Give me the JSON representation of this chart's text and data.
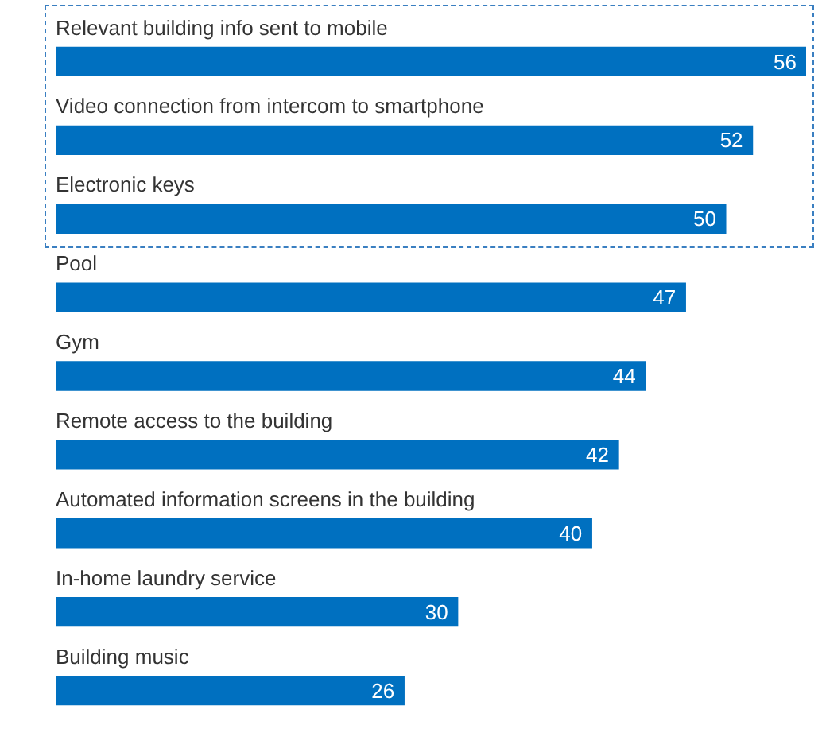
{
  "chart_data": {
    "type": "bar",
    "orientation": "horizontal",
    "categories": [
      "Relevant building info sent to mobile",
      "Video connection from intercom to smartphone",
      "Electronic keys",
      "Pool",
      "Gym",
      "Remote access to the building",
      "Automated information screens in the building",
      "In-home laundry service",
      "Building music"
    ],
    "values": [
      56,
      52,
      50,
      47,
      44,
      42,
      40,
      30,
      26
    ],
    "color": "#0070c0",
    "data_labels": true
  }
}
